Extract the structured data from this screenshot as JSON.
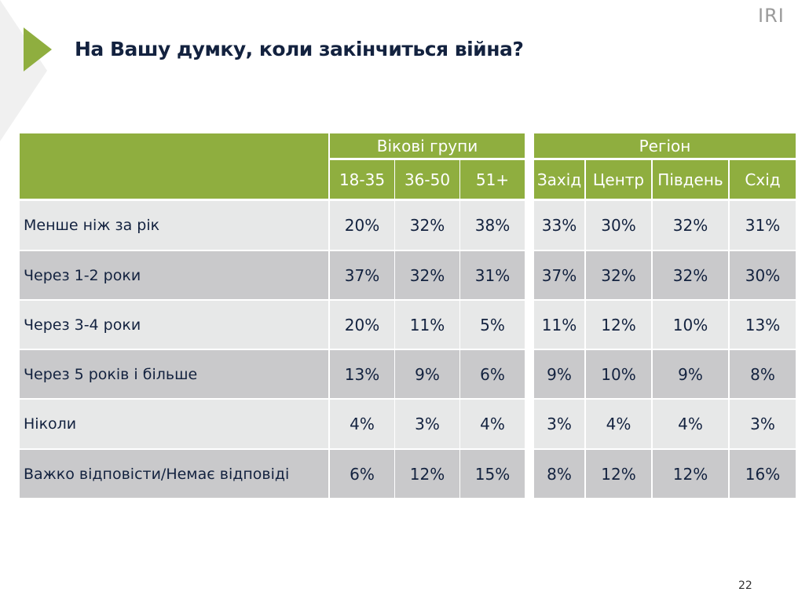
{
  "title": "На Вашу думку, коли закінчиться війна?",
  "logo": "IRI",
  "page_number": "22",
  "colors": {
    "header": "#8fae3f",
    "row_light": "#e7e8e8",
    "row_dark": "#c9c9cb",
    "text": "#13223f"
  },
  "groups": [
    {
      "label": "Вікові групи"
    },
    {
      "label": "Регіон"
    }
  ],
  "columns": [
    "18-35",
    "36-50",
    "51+",
    "Захід",
    "Центр",
    "Південь",
    "Схід"
  ],
  "rows": [
    {
      "label": "Менше ніж за рік",
      "values": [
        "20%",
        "32%",
        "38%",
        "33%",
        "30%",
        "32%",
        "31%"
      ]
    },
    {
      "label": "Через 1-2 роки",
      "values": [
        "37%",
        "32%",
        "31%",
        "37%",
        "32%",
        "32%",
        "30%"
      ]
    },
    {
      "label": "Через 3-4 роки",
      "values": [
        "20%",
        "11%",
        "5%",
        "11%",
        "12%",
        "10%",
        "13%"
      ]
    },
    {
      "label": "Через 5 років і більше",
      "values": [
        "13%",
        "9%",
        "6%",
        "9%",
        "10%",
        "9%",
        "8%"
      ]
    },
    {
      "label": "Ніколи",
      "values": [
        "4%",
        "3%",
        "4%",
        "3%",
        "4%",
        "4%",
        "3%"
      ]
    },
    {
      "label": "Важко відповісти/Немає відповіді",
      "values": [
        "6%",
        "12%",
        "15%",
        "8%",
        "12%",
        "12%",
        "16%"
      ]
    }
  ]
}
